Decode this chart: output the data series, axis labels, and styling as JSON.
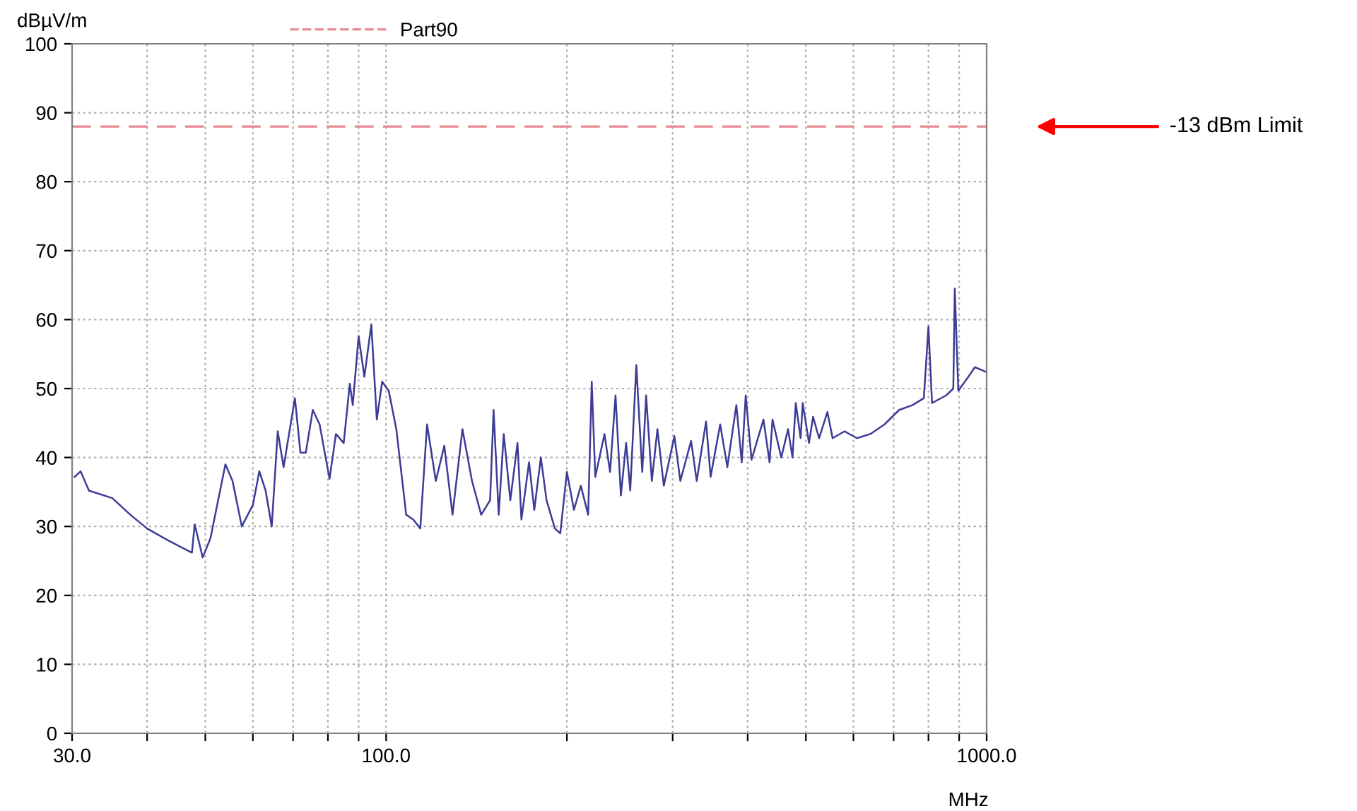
{
  "chart_data": {
    "type": "line",
    "ylabel": "dBµV/m",
    "xlabel": "MHz",
    "log": "x",
    "xlim": [
      30,
      1000
    ],
    "xticks": [
      {
        "value": 30,
        "label": "30.0"
      },
      {
        "value": 40,
        "label": null
      },
      {
        "value": 50,
        "label": null
      },
      {
        "value": 60,
        "label": null
      },
      {
        "value": 70,
        "label": null
      },
      {
        "value": 80,
        "label": null
      },
      {
        "value": 90,
        "label": null
      },
      {
        "value": 100,
        "label": "100.0"
      },
      {
        "value": 200,
        "label": null
      },
      {
        "value": 300,
        "label": null
      },
      {
        "value": 400,
        "label": null
      },
      {
        "value": 500,
        "label": null
      },
      {
        "value": 600,
        "label": null
      },
      {
        "value": 700,
        "label": null
      },
      {
        "value": 800,
        "label": null
      },
      {
        "value": 900,
        "label": null
      },
      {
        "value": 1000,
        "label": "1000.0"
      }
    ],
    "ylim": [
      0,
      100
    ],
    "yticks": [
      0,
      10,
      20,
      30,
      40,
      50,
      60,
      70,
      80,
      90,
      100
    ],
    "grid": true,
    "legend": "top",
    "line_style": "solid",
    "marker": "none",
    "series": [
      {
        "color": "#3c3c96",
        "x": [
          30.3,
          31,
          32,
          35,
          37.5,
          40,
          43.5,
          47.5,
          48,
          49.5,
          51,
          54,
          55.5,
          57.5,
          60,
          61.5,
          63,
          64.5,
          66,
          67.5,
          70.5,
          72,
          73.5,
          75.5,
          77.5,
          80.5,
          82.5,
          85,
          87,
          88,
          90,
          92,
          94.5,
          96.5,
          98.5,
          101,
          104,
          108,
          111,
          114,
          117,
          121,
          125,
          129,
          134,
          139,
          144,
          149,
          151,
          154,
          157,
          161,
          165.5,
          168,
          173,
          176.5,
          181,
          185,
          191,
          195,
          200,
          205.5,
          211,
          217,
          220,
          223,
          231,
          236,
          241,
          246,
          251,
          255,
          261,
          267,
          271,
          277,
          283,
          290,
          302,
          309,
          322,
          329,
          341,
          347,
          360,
          370,
          383,
          391,
          397,
          406,
          425,
          435,
          440,
          455,
          467,
          475,
          481,
          490,
          494,
          506,
          514,
          526,
          543,
          554,
          580,
          608,
          640,
          676,
          715,
          753,
          786,
          800,
          811,
          856,
          880,
          885,
          897,
          932,
          956,
          999
        ],
        "values": [
          37.2,
          38,
          35.2,
          34.1,
          31.7,
          29.7,
          27.9,
          26.2,
          30.3,
          25.5,
          28.3,
          39,
          36.6,
          30,
          33.1,
          38,
          35.2,
          30,
          43.8,
          38.6,
          48.6,
          40.7,
          40.7,
          46.9,
          44.8,
          36.9,
          43.4,
          42.1,
          50.7,
          47.6,
          57.6,
          51.7,
          59.3,
          45.5,
          51,
          49.7,
          44.1,
          31.7,
          31,
          29.7,
          44.8,
          36.6,
          41.7,
          31.7,
          44.1,
          36.6,
          31.7,
          33.8,
          46.9,
          31.7,
          43.4,
          33.8,
          42.1,
          31,
          39.3,
          32.4,
          40,
          33.8,
          29.7,
          29,
          37.9,
          32.4,
          35.9,
          31.7,
          51,
          37.2,
          43.4,
          37.9,
          49,
          34.5,
          42.1,
          35.2,
          53.4,
          37.9,
          49,
          36.6,
          44.1,
          35.9,
          43.1,
          36.6,
          42.4,
          36.6,
          45.2,
          37.2,
          44.8,
          38.6,
          47.6,
          39.3,
          49,
          39.7,
          45.5,
          39.3,
          45.5,
          40,
          44.1,
          40,
          47.9,
          42.8,
          47.9,
          42.1,
          45.9,
          42.8,
          46.6,
          42.8,
          43.8,
          42.8,
          43.4,
          44.8,
          46.9,
          47.6,
          48.6,
          59,
          47.9,
          49,
          50,
          64.5,
          49.7,
          51.7,
          53.1,
          52.4
        ]
      }
    ],
    "ref_lines": [
      {
        "axis": "y",
        "value": 88,
        "label": "Part90",
        "color": "#e88a94",
        "line_style": "dashed"
      }
    ],
    "annotations": [
      "-13 dBm Limit"
    ]
  }
}
